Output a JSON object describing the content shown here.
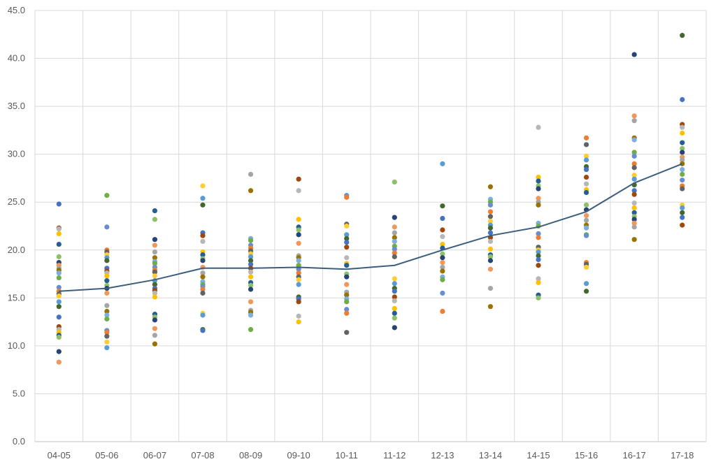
{
  "chart_data": {
    "type": "scatter",
    "title": "",
    "xlabel": "",
    "ylabel": "",
    "categories": [
      "04-05",
      "05-06",
      "06-07",
      "07-08",
      "08-09",
      "09-10",
      "10-11",
      "11-12",
      "12-13",
      "13-14",
      "14-15",
      "15-16",
      "16-17",
      "17-18"
    ],
    "ylim": [
      0,
      45
    ],
    "yticks": [
      "0.0",
      "5.0",
      "10.0",
      "15.0",
      "20.0",
      "25.0",
      "30.0",
      "35.0",
      "40.0",
      "45.0"
    ],
    "grid": true,
    "legend": "none",
    "palette": [
      "#4472c4",
      "#ed7d31",
      "#a5a5a5",
      "#ffc000",
      "#5b9bd5",
      "#70ad47",
      "#264478",
      "#9e480e",
      "#636363",
      "#997300",
      "#255e91",
      "#43682b",
      "#698ed0",
      "#f1975a",
      "#b7b7b7",
      "#ffcd33",
      "#7cafdd",
      "#8cc168"
    ],
    "points": [
      [
        24.8,
        22.3,
        22.2,
        21.7,
        20.6,
        19.3,
        18.7,
        18.4,
        18.1,
        17.9,
        17.6,
        17.1,
        16.1,
        15.7,
        15.4,
        15.2,
        14.6,
        14.1,
        13,
        12,
        11.7,
        11.4,
        11.1,
        10.9,
        9.4,
        8.3
      ],
      [
        25.7,
        22.4,
        20,
        19.8,
        19.5,
        19.2,
        18.9,
        18.1,
        17.8,
        17.6,
        17.3,
        16.8,
        16.3,
        16,
        15.5,
        14.2,
        13.6,
        13.2,
        12.8,
        11.6,
        11.4,
        11,
        10.4,
        9.8
      ],
      [
        24.1,
        23.2,
        21.1,
        20.5,
        19.8,
        19.2,
        18.8,
        18.6,
        18.2,
        17.9,
        17.7,
        17.3,
        16.8,
        16.4,
        16,
        15.8,
        15.5,
        15.1,
        13.3,
        13,
        12.7,
        11.8,
        11.1,
        10.2
      ],
      [
        26.7,
        25.4,
        24.7,
        21.8,
        21.5,
        20.9,
        19.8,
        19.5,
        19.1,
        18.9,
        18.2,
        17.6,
        17.2,
        16.7,
        16.4,
        16.2,
        15.9,
        15.5,
        13.4,
        13.2,
        11.7,
        11.6
      ],
      [
        27.9,
        26.2,
        21.2,
        21,
        20.5,
        20.2,
        19.9,
        19.6,
        19.3,
        18.9,
        18.5,
        18.1,
        17.7,
        17.2,
        16.6,
        16.3,
        15.9,
        14.6,
        13.7,
        13.5,
        13.2,
        11.7
      ],
      [
        27.4,
        26.2,
        23.2,
        22.4,
        22.1,
        21.6,
        20.7,
        19.4,
        19.2,
        18.9,
        18.4,
        18,
        17.6,
        17.2,
        16.9,
        16.4,
        15.1,
        14.9,
        14.6,
        13.1,
        12.5
      ],
      [
        25.7,
        25.5,
        22.7,
        22.5,
        21.6,
        21.2,
        20.8,
        20.3,
        19.2,
        18.6,
        18.4,
        17.5,
        17.2,
        16.4,
        15.6,
        15.3,
        14.9,
        14.6,
        13.8,
        13.4,
        11.4
      ],
      [
        27.1,
        23.4,
        22.4,
        21.8,
        21.3,
        20.9,
        20.4,
        20.1,
        19.7,
        19.3,
        17,
        16.5,
        16,
        15.7,
        15.1,
        14.7,
        13.9,
        13.4,
        12.9,
        11.9
      ],
      [
        29,
        24.6,
        23.3,
        22.1,
        21.4,
        20.6,
        20.2,
        19.6,
        19.2,
        18.7,
        18.2,
        17.8,
        17.2,
        16.9,
        15.5,
        13.6
      ],
      [
        26.6,
        25.3,
        25,
        24.7,
        24,
        23.5,
        23,
        22.6,
        22.3,
        21.8,
        21.3,
        20.9,
        20.1,
        19.5,
        19.3,
        18.9,
        18,
        16,
        14.1
      ],
      [
        32.8,
        27.6,
        27.2,
        26.7,
        26.4,
        25.4,
        25,
        24.7,
        22.8,
        22.5,
        21.7,
        21.3,
        20.3,
        20,
        19.8,
        19.4,
        19,
        18.4,
        17,
        16.6,
        15.3,
        15
      ],
      [
        31.7,
        31,
        29.8,
        29.4,
        28.7,
        28.4,
        27.6,
        26.9,
        26.3,
        26,
        24.7,
        24.2,
        23.6,
        23.1,
        22.6,
        22.3,
        21.6,
        21.5,
        18.7,
        18.5,
        18.2,
        16.5,
        15.7
      ],
      [
        40.4,
        34,
        33.5,
        31.7,
        31.5,
        30.2,
        29.8,
        29,
        28.6,
        27.8,
        27.4,
        26.8,
        26.2,
        25.8,
        24.9,
        24.4,
        23.9,
        23.5,
        23.2,
        22.8,
        22.4,
        21.1
      ],
      [
        42.4,
        35.7,
        33.1,
        32.8,
        32.2,
        31.2,
        30.6,
        30.2,
        29.7,
        29.4,
        29,
        28.4,
        27.9,
        27.3,
        26.7,
        26.4,
        24.7,
        24.4,
        23.9,
        23.4,
        22.6
      ]
    ],
    "series": [
      {
        "name": "",
        "type": "line",
        "color": "#3b5e7e",
        "values": [
          15.7,
          16,
          16.9,
          18.1,
          18.1,
          18.2,
          18,
          18.4,
          20,
          21.5,
          22.4,
          24,
          27,
          29
        ]
      }
    ]
  }
}
